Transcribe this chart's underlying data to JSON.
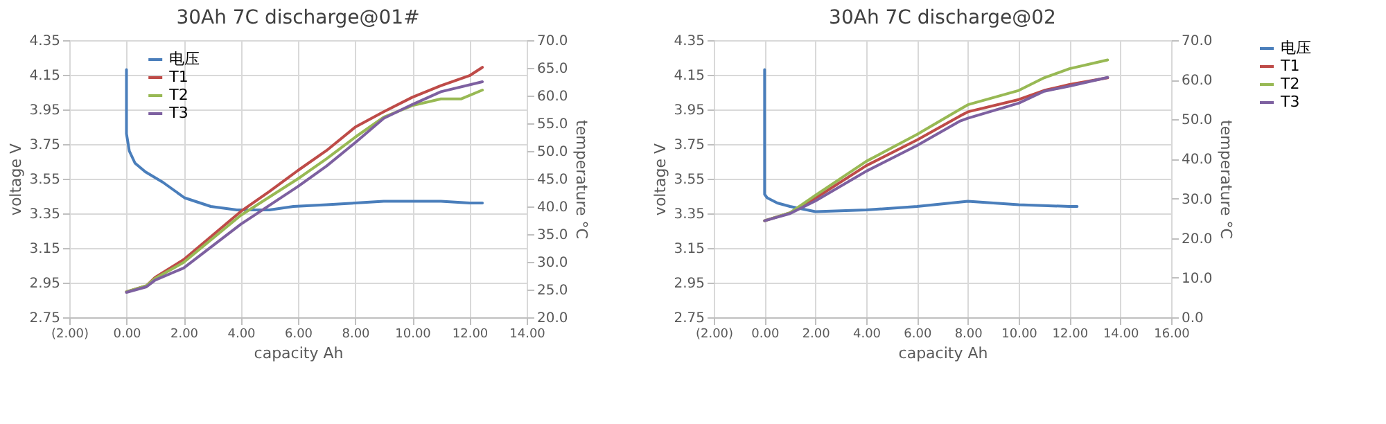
{
  "chart_data": [
    {
      "type": "line",
      "title": "30Ah  7C discharge@01#",
      "xlabel": "capacity Ah",
      "ylabel": "voltage V",
      "y2label": "temperature °C",
      "grid": true,
      "legend": "top left",
      "xlim": [
        -2,
        14
      ],
      "xticks": [
        {
          "value": -2,
          "label": "(2.00)"
        },
        {
          "value": 0,
          "label": "0.00"
        },
        {
          "value": 2,
          "label": "2.00"
        },
        {
          "value": 4,
          "label": "4.00"
        },
        {
          "value": 6,
          "label": "6.00"
        },
        {
          "value": 8,
          "label": "8.00"
        },
        {
          "value": 10,
          "label": "10.00"
        },
        {
          "value": 12,
          "label": "12.00"
        },
        {
          "value": 14,
          "label": "14.00"
        }
      ],
      "ylim": [
        2.75,
        4.35
      ],
      "yticks": [
        2.75,
        2.95,
        3.15,
        3.35,
        3.55,
        3.75,
        3.95,
        4.15,
        4.35
      ],
      "y2lim": [
        20,
        70
      ],
      "y2ticks": [
        {
          "value": 20,
          "label": "20.0"
        },
        {
          "value": 25,
          "label": "25.0"
        },
        {
          "value": 30,
          "label": "30.0"
        },
        {
          "value": 35,
          "label": "35.0"
        },
        {
          "value": 40,
          "label": "40.0"
        },
        {
          "value": 45,
          "label": "45.0"
        },
        {
          "value": 50,
          "label": "50.0"
        },
        {
          "value": 55,
          "label": "55.0"
        },
        {
          "value": 60,
          "label": "60.0"
        },
        {
          "value": 65,
          "label": "65.0"
        },
        {
          "value": 70,
          "label": "70.0"
        }
      ],
      "series": [
        {
          "name": "电压",
          "color": "#4a7ebb",
          "axis": "y",
          "x": [
            0,
            0,
            0.1,
            0.3,
            0.66,
            1.27,
            2.03,
            2.95,
            3.86,
            5.0,
            5.84,
            7,
            8,
            9,
            10,
            11,
            12,
            12.45
          ],
          "values": [
            4.18,
            3.81,
            3.71,
            3.64,
            3.59,
            3.53,
            3.44,
            3.39,
            3.37,
            3.37,
            3.39,
            3.4,
            3.41,
            3.42,
            3.42,
            3.42,
            3.41,
            3.41
          ]
        },
        {
          "name": "T1",
          "color": "#be4b48",
          "axis": "y2",
          "x": [
            0,
            0.7,
            1,
            2,
            4,
            5,
            6,
            7,
            8,
            9,
            10,
            11,
            12,
            12.45
          ],
          "values": [
            24.6,
            25.7,
            27.2,
            30.4,
            39.1,
            42.7,
            46.5,
            50.1,
            54.3,
            57.1,
            59.7,
            61.8,
            63.6,
            65.1
          ]
        },
        {
          "name": "T2",
          "color": "#98b954",
          "axis": "y2",
          "x": [
            0,
            0.7,
            1,
            2,
            4,
            6,
            7,
            8,
            9,
            10,
            11,
            11.7,
            12.45
          ],
          "values": [
            24.6,
            25.7,
            27.0,
            29.9,
            38.4,
            45.0,
            48.6,
            52.5,
            56.1,
            58.2,
            59.4,
            59.4,
            61.0
          ]
        },
        {
          "name": "T3",
          "color": "#7d60a0",
          "axis": "y2",
          "x": [
            0,
            0.7,
            1,
            2,
            4,
            6,
            7,
            8,
            9,
            10,
            11,
            12.45
          ],
          "values": [
            24.5,
            25.5,
            26.7,
            28.9,
            36.8,
            43.6,
            47.3,
            51.5,
            55.9,
            58.4,
            60.7,
            62.5
          ]
        }
      ]
    },
    {
      "type": "line",
      "title": "30Ah  7C discharge@02",
      "xlabel": "capacity Ah",
      "ylabel": "voltage V",
      "y2label": "temperature °C",
      "grid": true,
      "legend": "right",
      "xlim": [
        -2,
        16
      ],
      "xticks": [
        {
          "value": -2,
          "label": "(2.00)"
        },
        {
          "value": 0,
          "label": "0.00"
        },
        {
          "value": 2,
          "label": "2.00"
        },
        {
          "value": 4,
          "label": "4.00"
        },
        {
          "value": 6,
          "label": "6.00"
        },
        {
          "value": 8,
          "label": "8.00"
        },
        {
          "value": 10,
          "label": "10.00"
        },
        {
          "value": 12,
          "label": "12.00"
        },
        {
          "value": 14,
          "label": "14.00"
        },
        {
          "value": 16,
          "label": "16.00"
        }
      ],
      "ylim": [
        2.75,
        4.35
      ],
      "yticks": [
        2.75,
        2.95,
        3.15,
        3.35,
        3.55,
        3.75,
        3.95,
        4.15,
        4.35
      ],
      "y2lim": [
        0,
        70
      ],
      "y2ticks": [
        {
          "value": 0,
          "label": "0.0"
        },
        {
          "value": 10,
          "label": "10.0"
        },
        {
          "value": 20,
          "label": "20.0"
        },
        {
          "value": 30,
          "label": "30.0"
        },
        {
          "value": 40,
          "label": "40.0"
        },
        {
          "value": 50,
          "label": "50.0"
        },
        {
          "value": 60,
          "label": "60.0"
        },
        {
          "value": 70,
          "label": "70.0"
        }
      ],
      "series": [
        {
          "name": "电压",
          "color": "#4a7ebb",
          "axis": "y",
          "x": [
            0,
            0,
            0.1,
            0.5,
            1,
            2,
            4,
            6,
            8,
            10,
            12,
            12.3
          ],
          "values": [
            4.18,
            3.46,
            3.44,
            3.41,
            3.39,
            3.36,
            3.37,
            3.39,
            3.42,
            3.4,
            3.39,
            3.39
          ]
        },
        {
          "name": "T1",
          "color": "#be4b48",
          "axis": "y2",
          "x": [
            0,
            1,
            2,
            4,
            6,
            7.7,
            8,
            10,
            11,
            12,
            13.5
          ],
          "values": [
            24.4,
            26.4,
            30.1,
            38.3,
            44.8,
            50.9,
            51.9,
            55.0,
            57.3,
            58.8,
            60.5
          ]
        },
        {
          "name": "T2",
          "color": "#98b954",
          "axis": "y2",
          "x": [
            0,
            1,
            2,
            4,
            6,
            7.7,
            8,
            10,
            11,
            12,
            13.5
          ],
          "values": [
            24.4,
            26.4,
            30.8,
            39.4,
            46.2,
            52.6,
            53.7,
            57.3,
            60.5,
            62.8,
            65.0
          ]
        },
        {
          "name": "T3",
          "color": "#7d60a0",
          "axis": "y2",
          "x": [
            0,
            1,
            2,
            4,
            6,
            7.7,
            8,
            10,
            11,
            12,
            13.5
          ],
          "values": [
            24.4,
            26.2,
            29.4,
            36.9,
            43.4,
            49.6,
            50.3,
            54.1,
            57.1,
            58.4,
            60.6
          ]
        }
      ]
    }
  ]
}
